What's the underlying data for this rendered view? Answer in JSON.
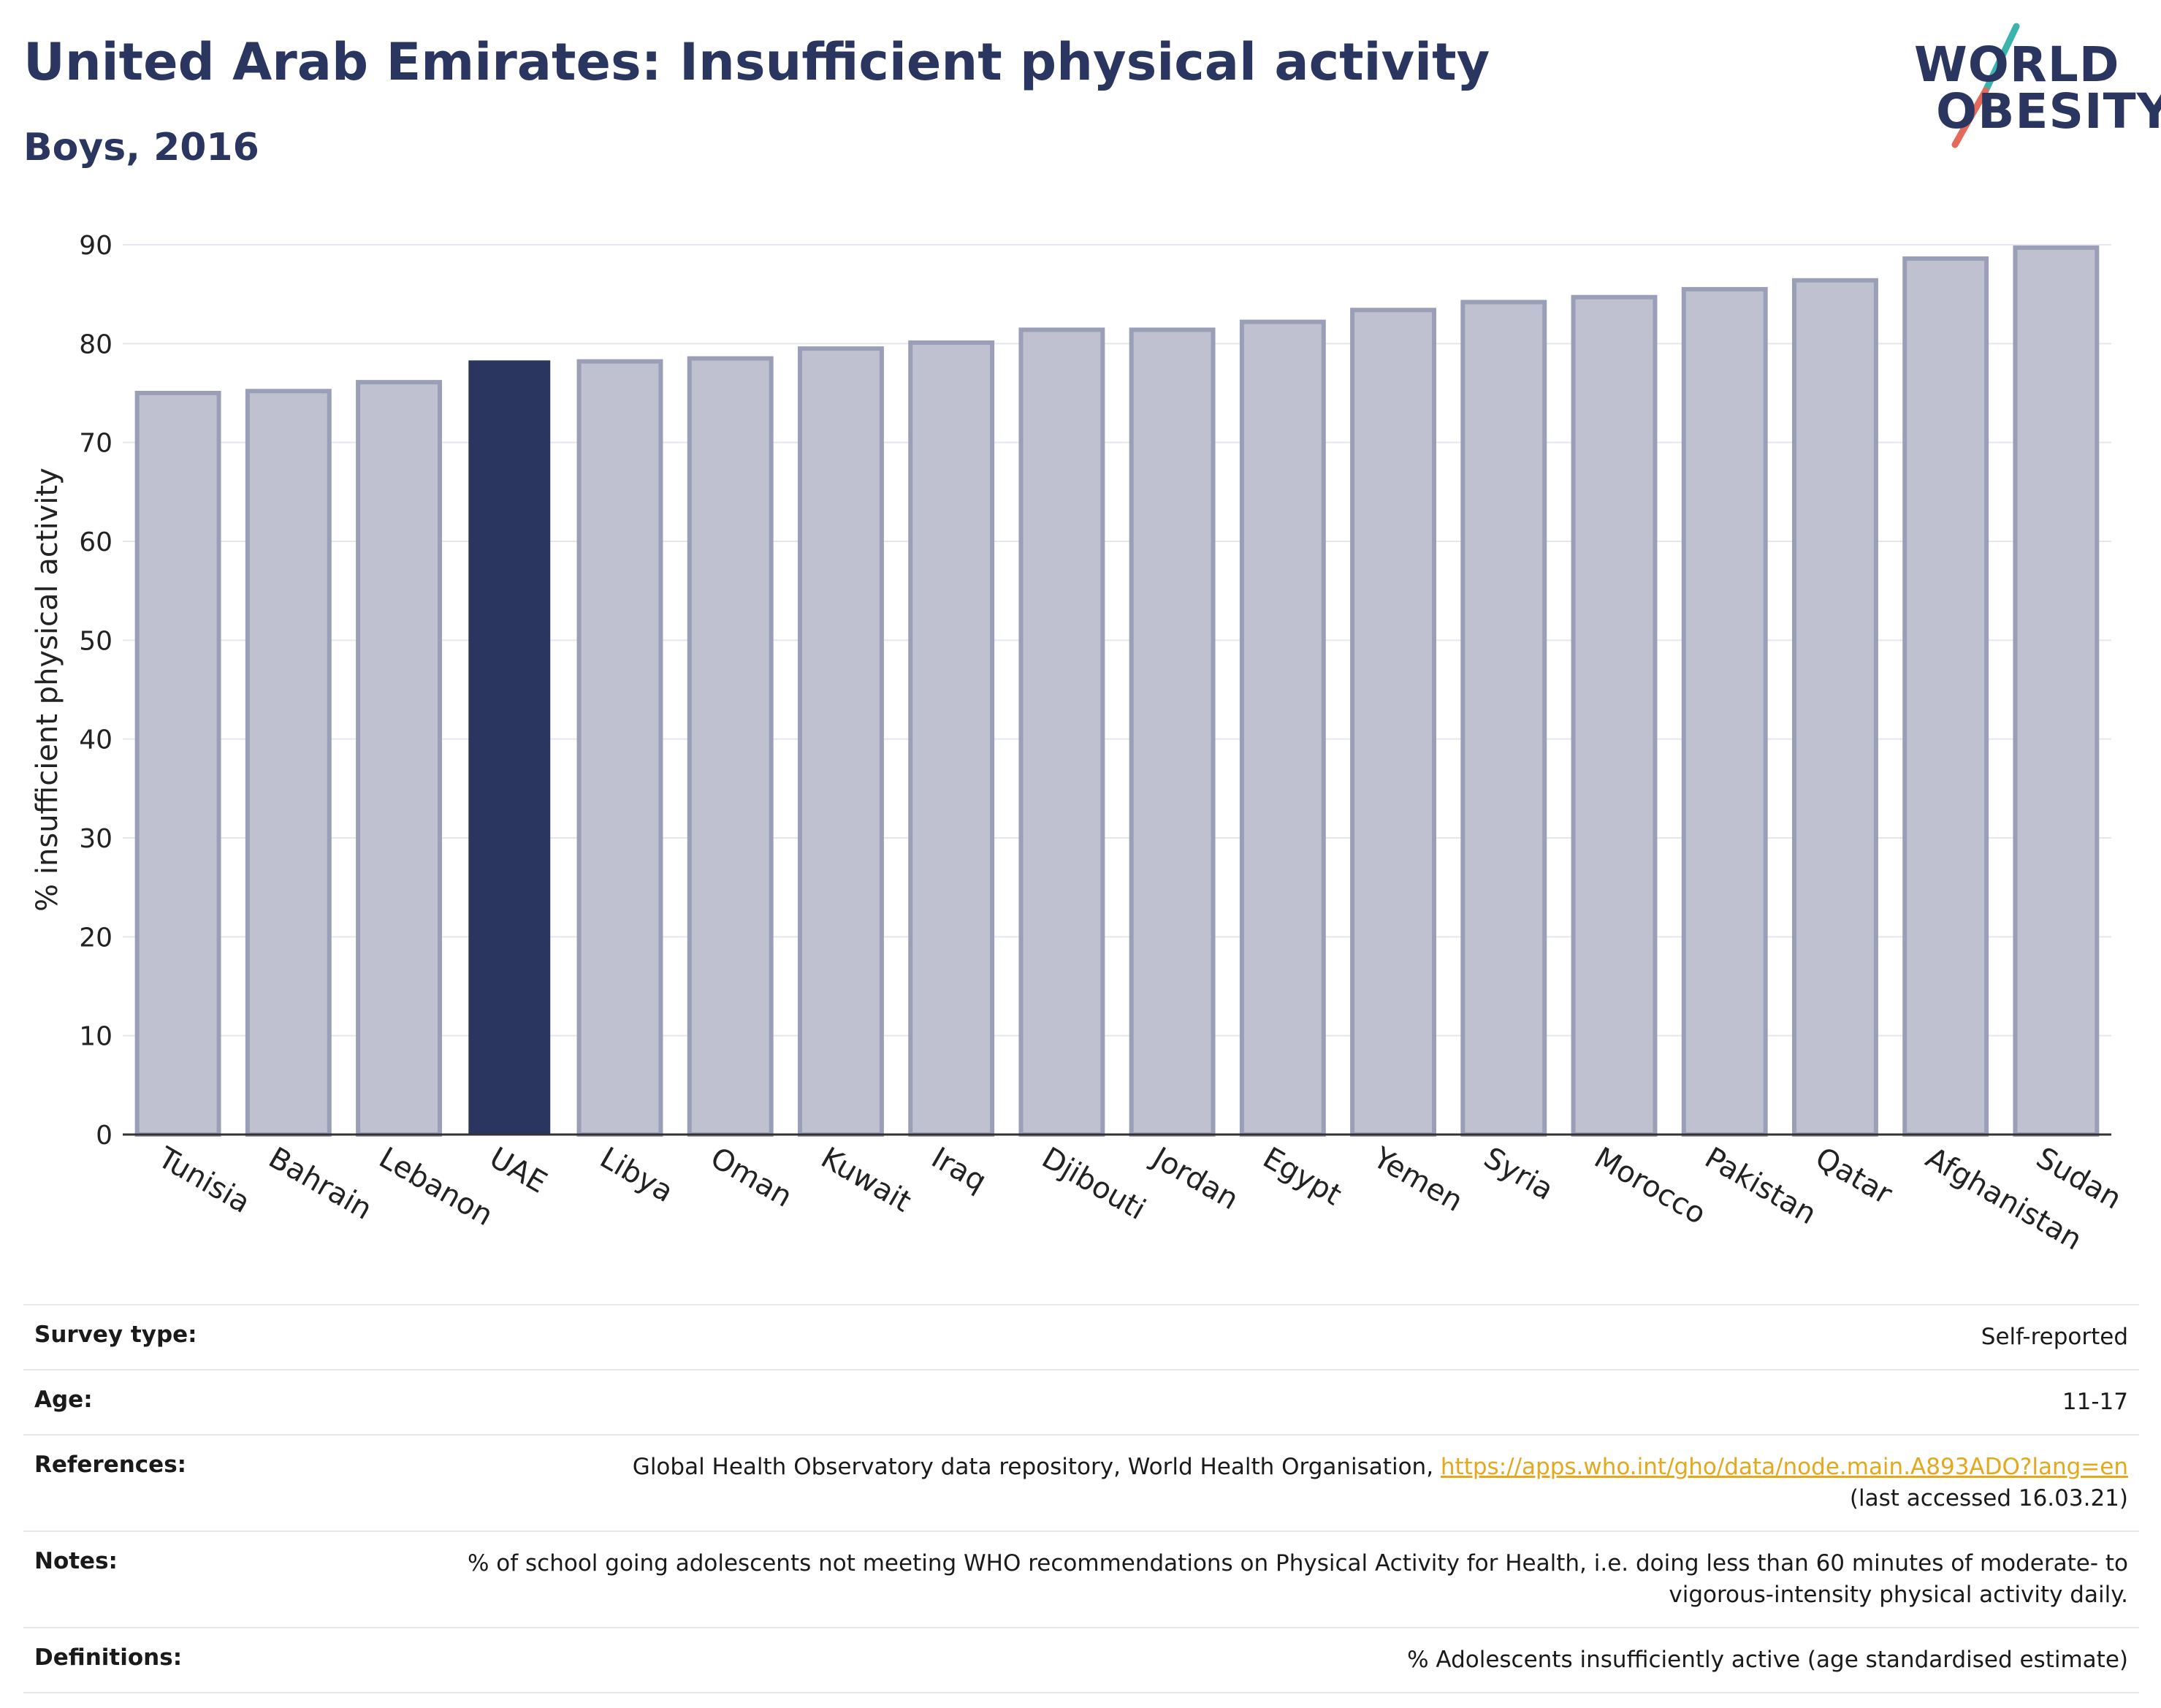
{
  "header": {
    "title": "United Arab Emirates: Insufficient physical activity",
    "subtitle": "Boys, 2016"
  },
  "logo": {
    "line1": "WORLD",
    "line2": "OBESITY",
    "colors": {
      "text": "#2a3560",
      "slash_top": "#3bb4b0",
      "slash_bottom": "#e46a5a"
    }
  },
  "colors": {
    "highlight_bar": "#2a3560",
    "other_bar": "#bfc1d0",
    "other_bar_border": "#9a9fb7",
    "grid": "#e4e7ef",
    "axis": "#333333"
  },
  "chart_data": {
    "type": "bar",
    "title": "United Arab Emirates: Insufficient physical activity",
    "subtitle": "Boys, 2016",
    "xlabel": "",
    "ylabel": "% insufficient physical activity",
    "ylim": [
      0,
      90
    ],
    "yticks": [
      "0",
      "10",
      "20",
      "30",
      "40",
      "50",
      "60",
      "70",
      "80",
      "90"
    ],
    "grid": true,
    "highlight": "UAE",
    "categories": [
      "Tunisia",
      "Bahrain",
      "Lebanon",
      "UAE",
      "Libya",
      "Oman",
      "Kuwait",
      "Iraq",
      "Djibouti",
      "Jordan",
      "Egypt",
      "Yemen",
      "Syria",
      "Morocco",
      "Pakistan",
      "Qatar",
      "Afghanistan",
      "Sudan"
    ],
    "values": [
      75.0,
      75.2,
      76.1,
      78.3,
      78.2,
      78.5,
      79.5,
      80.1,
      81.4,
      81.4,
      82.2,
      83.4,
      84.2,
      84.7,
      85.5,
      86.4,
      88.6,
      89.7
    ]
  },
  "info": {
    "survey_type": {
      "label": "Survey type:",
      "value": "Self-reported"
    },
    "age": {
      "label": "Age:",
      "value": "11-17"
    },
    "references": {
      "label": "References:",
      "value_prefix": "Global Health Observatory data repository, World Health Organisation, ",
      "link": "https://apps.who.int/gho/data/node.main.A893ADO?lang=en",
      "value_suffix": "(last accessed 16.03.21)"
    },
    "notes": {
      "label": "Notes:",
      "value": "% of school going adolescents not meeting WHO recommendations on Physical Activity for Health, i.e. doing less than 60 minutes of moderate- to vigorous-intensity physical activity daily."
    },
    "definitions": {
      "label": "Definitions:",
      "value": "% Adolescents insufficiently active (age standardised estimate)"
    }
  }
}
